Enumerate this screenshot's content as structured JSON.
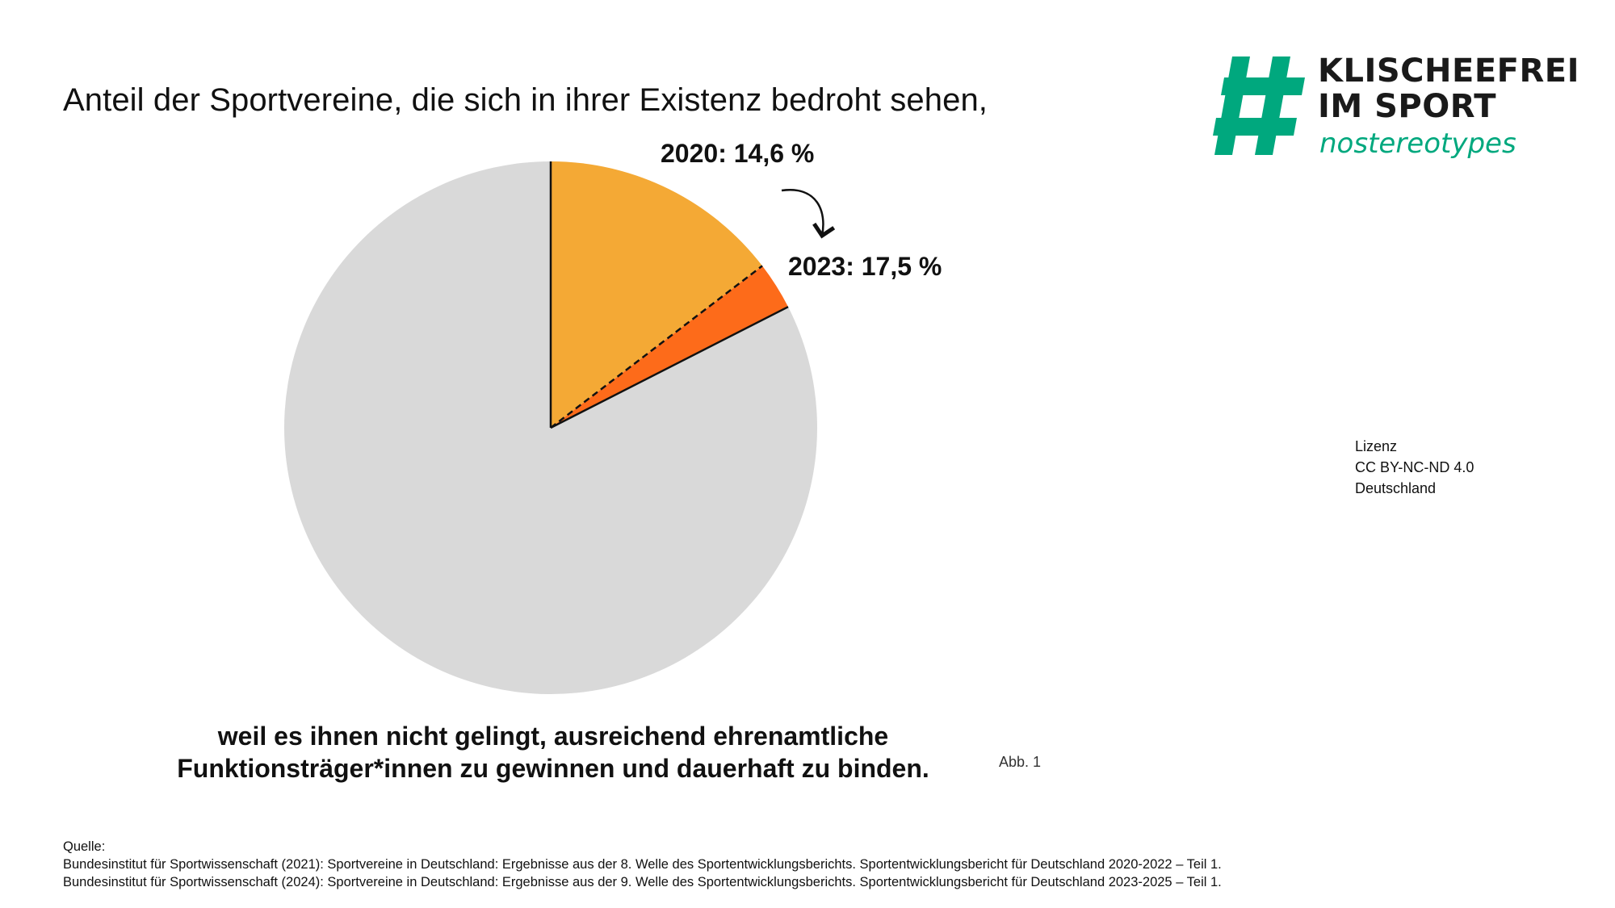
{
  "title": "Anteil der Sportvereine, die sich in ihrer Existenz bedroht sehen,",
  "subtitle_lines": [
    "weil es ihnen nicht gelingt, ausreichend ehrenamtliche",
    "Funktionsträger*innen zu gewinnen und dauerhaft zu binden."
  ],
  "figure_ref": "Abb. 1",
  "license_lines": [
    "Lizenz",
    "CC BY-NC-ND 4.0",
    "Deutschland"
  ],
  "sources": {
    "heading": "Quelle:",
    "lines": [
      "Bundesinstitut für Sportwissenschaft (2021): Sportvereine in Deutschland: Ergebnisse aus der 8. Welle des Sportentwicklungsberichts. Sportentwicklungsbericht für Deutschland 2020-2022 – Teil 1.",
      "Bundesinstitut für Sportwissenschaft (2024): Sportvereine in Deutschland: Ergebnisse aus der 9. Welle des Sportentwicklungsberichts. Sportentwicklungsbericht für Deutschland 2023-2025 – Teil 1."
    ]
  },
  "logo": {
    "line1": "KLISCHEEFREI",
    "line2": "IM SPORT",
    "tagline": "nostereotypes",
    "mark_icon": "hashtag-icon"
  },
  "chart_data": {
    "type": "pie",
    "title": "Anteil der Sportvereine, die sich in ihrer Existenz bedroht sehen,",
    "unit": "%",
    "slices": [
      {
        "name": "2020",
        "label": "2020: 14,6 %",
        "value": 14.6,
        "color": "#f4a935"
      },
      {
        "name": "2023 increase",
        "label": "2023: 17,5 %",
        "value": 2.9,
        "color": "#fd6b1a"
      },
      {
        "name": "rest",
        "label": "",
        "value": 82.5,
        "color": "#d9d9d9"
      }
    ],
    "annotations": [
      "2020: 14,6 %",
      "2023: 17,5 %"
    ]
  },
  "colors": {
    "brand_green": "#00a87e",
    "text": "#111111"
  }
}
